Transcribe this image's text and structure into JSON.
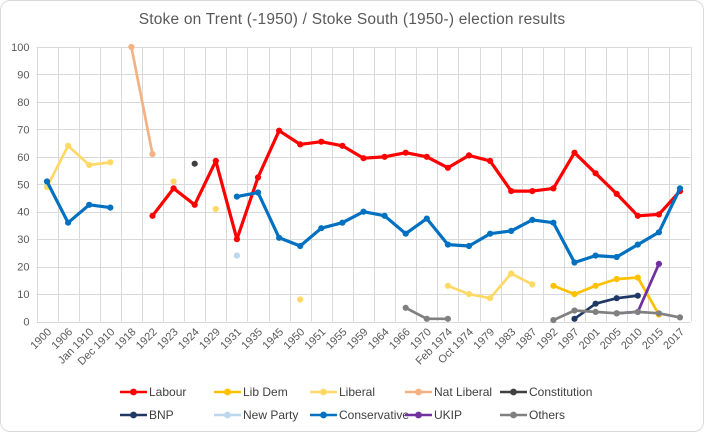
{
  "chart_data": {
    "type": "line",
    "title": "Stoke on Trent (-1950) / Stoke South (1950-) election results",
    "categories": [
      "1900",
      "1906",
      "Jan 1910",
      "Dec 1910",
      "1918",
      "1922",
      "1923",
      "1924",
      "1929",
      "1931",
      "1935",
      "1945",
      "1950",
      "1951",
      "1955",
      "1959",
      "1964",
      "1966",
      "1970",
      "Feb 1974",
      "Oct 1974",
      "1979",
      "1983",
      "1987",
      "1992",
      "1997",
      "2001",
      "2005",
      "2010",
      "2015",
      "2017"
    ],
    "ylabel": "",
    "xlabel": "",
    "ylim": [
      0,
      100
    ],
    "ytick_interval": 10,
    "grid": true,
    "legend_position": "bottom",
    "colors": {
      "gridline": "#d9d9d9",
      "axis_text": "#595959",
      "title_text": "#595959",
      "legend_text": "#404040"
    },
    "series": [
      {
        "name": "Labour",
        "color": "#ff0000",
        "width": 3.2,
        "values": [
          null,
          null,
          null,
          null,
          null,
          38.5,
          48.5,
          42.5,
          58.5,
          30,
          52.5,
          69.5,
          64.5,
          65.5,
          64,
          59.5,
          60,
          61.5,
          60,
          56,
          60.5,
          58.5,
          47.5,
          47.5,
          48.5,
          61.5,
          54,
          46.5,
          38.5,
          39,
          47.5
        ]
      },
      {
        "name": "Lib Dem",
        "color": "#ffc000",
        "width": 2.7,
        "values": [
          null,
          null,
          null,
          null,
          null,
          null,
          null,
          null,
          null,
          null,
          null,
          null,
          null,
          null,
          null,
          null,
          null,
          null,
          null,
          null,
          null,
          null,
          null,
          null,
          13,
          10,
          13,
          15.5,
          16,
          2.5,
          null
        ]
      },
      {
        "name": "Liberal",
        "color": "#ffd966",
        "width": 2.7,
        "values": [
          49,
          64,
          57,
          58,
          null,
          null,
          51,
          null,
          41,
          null,
          null,
          null,
          8,
          null,
          null,
          null,
          null,
          null,
          null,
          13,
          10,
          8.5,
          17.5,
          13.5,
          null,
          null,
          null,
          null,
          null,
          null,
          null
        ]
      },
      {
        "name": "Nat Liberal",
        "color": "#f4b183",
        "width": 2.7,
        "values": [
          null,
          null,
          null,
          null,
          100,
          61,
          null,
          null,
          null,
          null,
          null,
          null,
          null,
          null,
          null,
          null,
          null,
          null,
          null,
          null,
          null,
          null,
          null,
          null,
          null,
          null,
          null,
          null,
          null,
          null,
          null
        ]
      },
      {
        "name": "Constitution",
        "color": "#404040",
        "width": 2.7,
        "values": [
          null,
          null,
          null,
          null,
          null,
          null,
          null,
          57.5,
          null,
          null,
          null,
          null,
          null,
          null,
          null,
          null,
          null,
          null,
          null,
          null,
          null,
          null,
          null,
          null,
          null,
          null,
          null,
          null,
          null,
          null,
          null
        ]
      },
      {
        "name": "BNP",
        "color": "#1f3864",
        "width": 2.7,
        "values": [
          null,
          null,
          null,
          null,
          null,
          null,
          null,
          null,
          null,
          null,
          null,
          null,
          null,
          null,
          null,
          null,
          null,
          null,
          null,
          null,
          null,
          null,
          null,
          null,
          null,
          1,
          6.5,
          8.5,
          9.4,
          null,
          null
        ]
      },
      {
        "name": "New Party",
        "color": "#bdd7ee",
        "width": 2.7,
        "values": [
          null,
          null,
          null,
          null,
          null,
          null,
          null,
          null,
          null,
          24,
          null,
          null,
          null,
          null,
          null,
          null,
          null,
          null,
          null,
          null,
          null,
          null,
          null,
          null,
          null,
          null,
          null,
          null,
          null,
          null,
          null
        ]
      },
      {
        "name": "Conservative",
        "color": "#0070c0",
        "width": 3.2,
        "values": [
          51,
          36,
          42.5,
          41.5,
          null,
          null,
          null,
          null,
          null,
          45.5,
          47,
          30.5,
          27.5,
          34,
          36,
          40,
          38.5,
          32,
          37.5,
          28,
          27.5,
          32,
          33,
          37,
          36,
          21.5,
          24,
          23.5,
          28,
          32.5,
          48.5
        ]
      },
      {
        "name": "UKIP",
        "color": "#7030a0",
        "width": 2.7,
        "values": [
          null,
          null,
          null,
          null,
          null,
          null,
          null,
          null,
          null,
          null,
          null,
          null,
          null,
          null,
          null,
          null,
          null,
          null,
          null,
          null,
          null,
          null,
          null,
          null,
          null,
          null,
          null,
          3,
          3.5,
          21,
          null
        ]
      },
      {
        "name": "Others",
        "color": "#808080",
        "width": 2.7,
        "values": [
          null,
          null,
          null,
          null,
          null,
          null,
          null,
          null,
          null,
          null,
          null,
          null,
          null,
          null,
          null,
          null,
          null,
          5,
          1,
          1,
          null,
          null,
          null,
          null,
          0.5,
          4,
          3.5,
          3,
          3.5,
          3,
          1.5
        ]
      }
    ],
    "legend_rows": [
      [
        "Labour",
        "Lib Dem",
        "Liberal",
        "Nat Liberal",
        "Constitution"
      ],
      [
        "BNP",
        "New Party",
        "Conservative",
        "UKIP",
        "Others"
      ]
    ]
  }
}
